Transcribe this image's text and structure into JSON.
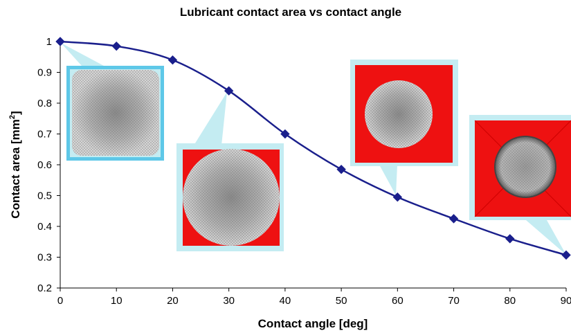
{
  "chart_data": {
    "type": "line",
    "title": "Lubricant contact area vs contact angle",
    "xlabel": "Contact angle [deg]",
    "ylabel": "Contact area [mm",
    "ylabel_sup": "2",
    "ylabel_end": "]",
    "xlim": [
      0,
      90
    ],
    "ylim": [
      0.2,
      1
    ],
    "x_ticks": [
      "0",
      "10",
      "20",
      "30",
      "40",
      "50",
      "60",
      "70",
      "80",
      "90"
    ],
    "y_ticks": [
      "0.2",
      "0.3",
      "0.4",
      "0.5",
      "0.6",
      "0.7",
      "0.8",
      "0.9",
      "1"
    ],
    "grid": false,
    "legend": "none",
    "series": [
      {
        "x": [
          0,
          10,
          20,
          30,
          40,
          50,
          60,
          70,
          80,
          90
        ],
        "values": [
          1.0,
          0.985,
          0.94,
          0.84,
          0.7,
          0.585,
          0.495,
          0.425,
          0.36,
          0.307
        ]
      }
    ],
    "colors": {
      "line": "#1a1f8c",
      "marker": "#1a1f8c",
      "callout": "#c4ecf2",
      "callout_border": "#5ec8e8",
      "substrate": "#ee1111",
      "droplet": "#b8b8b8"
    }
  }
}
